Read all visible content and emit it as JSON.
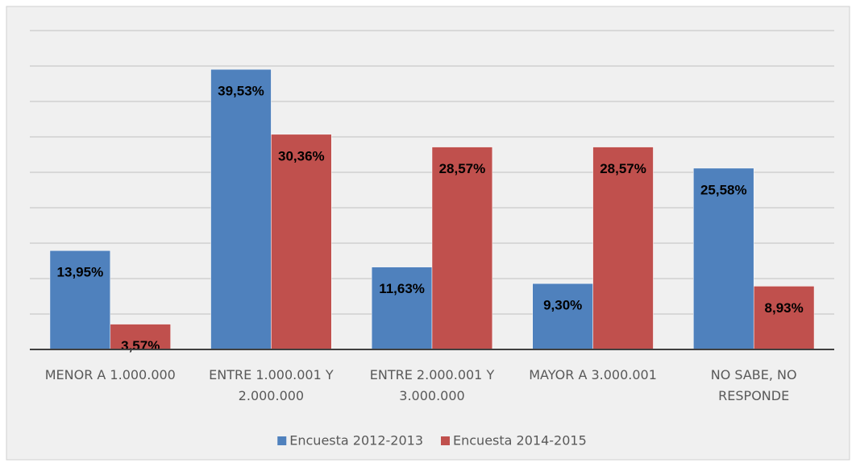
{
  "chart_data": {
    "type": "bar",
    "categories": [
      "MENOR A 1.000.000",
      "ENTRE 1.000.001 Y 2.000.000",
      "ENTRE 2.000.001 Y 3.000.000",
      "MAYOR A 3.000.001",
      "NO SABE, NO RESPONDE"
    ],
    "series": [
      {
        "name": "Encuesta 2012-2013",
        "color": "#4f81bd",
        "values": [
          13.95,
          39.53,
          11.63,
          9.3,
          25.58
        ],
        "value_labels": [
          "13,95%",
          "39,53%",
          "11,63%",
          "9,30%",
          "25,58%"
        ]
      },
      {
        "name": "Encuesta 2014-2015",
        "color": "#c0504d",
        "values": [
          3.57,
          30.36,
          28.57,
          28.57,
          8.93
        ],
        "value_labels": [
          "3,57%",
          "30,36%",
          "28,57%",
          "28,57%",
          "8,93%"
        ]
      }
    ],
    "ylim": [
      0,
      45
    ],
    "yticks": [
      0,
      5,
      10,
      15,
      20,
      25,
      30,
      35,
      40,
      45
    ],
    "grid": true,
    "legend": "bottom"
  }
}
